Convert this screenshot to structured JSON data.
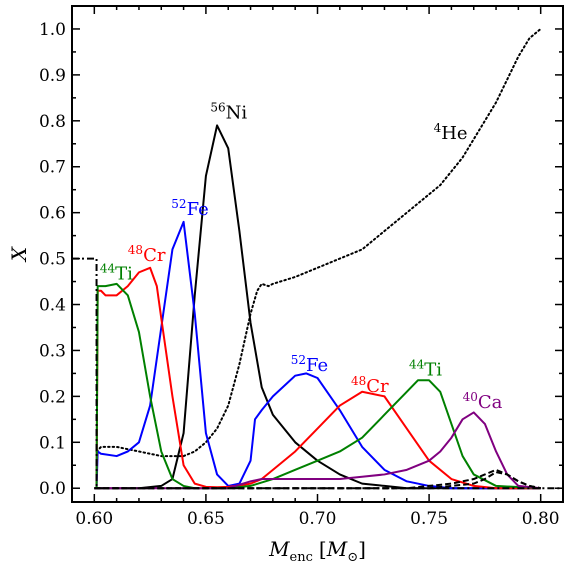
{
  "chart_data": {
    "type": "line",
    "title": "",
    "xlabel": {
      "main": "M",
      "sub": "enc",
      "unit_open": "[",
      "unit_main": "M",
      "unit_sub": "⊙",
      "unit_close": "]"
    },
    "ylabel": "X",
    "xlim": [
      0.59,
      0.81
    ],
    "ylim": [
      -0.03,
      1.05
    ],
    "xticks": [
      0.6,
      0.65,
      0.7,
      0.75,
      0.8
    ],
    "xtick_labels": [
      "0.60",
      "0.65",
      "0.70",
      "0.75",
      "0.80"
    ],
    "yticks": [
      0.0,
      0.1,
      0.2,
      0.3,
      0.4,
      0.5,
      0.6,
      0.7,
      0.8,
      0.9,
      1.0
    ],
    "ytick_labels": [
      "0.0",
      "0.1",
      "0.2",
      "0.3",
      "0.4",
      "0.5",
      "0.6",
      "0.7",
      "0.8",
      "0.9",
      "1.0"
    ],
    "grid": false,
    "legend": "none",
    "series": [
      {
        "key": "he4",
        "color": "#000000",
        "style": "dotted",
        "x": [
          0.601,
          0.603,
          0.61,
          0.62,
          0.63,
          0.64,
          0.645,
          0.65,
          0.655,
          0.66,
          0.665,
          0.67,
          0.673,
          0.675,
          0.678,
          0.68,
          0.69,
          0.7,
          0.71,
          0.72,
          0.73,
          0.74,
          0.75,
          0.755,
          0.76,
          0.765,
          0.77,
          0.775,
          0.78,
          0.785,
          0.79,
          0.795,
          0.8
        ],
        "y": [
          0.08,
          0.09,
          0.09,
          0.08,
          0.07,
          0.07,
          0.08,
          0.1,
          0.13,
          0.18,
          0.27,
          0.38,
          0.43,
          0.445,
          0.44,
          0.445,
          0.46,
          0.48,
          0.5,
          0.52,
          0.56,
          0.6,
          0.64,
          0.66,
          0.69,
          0.72,
          0.76,
          0.8,
          0.84,
          0.89,
          0.94,
          0.98,
          1.0
        ]
      },
      {
        "key": "ni56",
        "color": "#000000",
        "style": "solid",
        "x": [
          0.6,
          0.62,
          0.63,
          0.635,
          0.64,
          0.645,
          0.65,
          0.655,
          0.66,
          0.665,
          0.67,
          0.675,
          0.68,
          0.69,
          0.7,
          0.71,
          0.72,
          0.73,
          0.74,
          0.75,
          0.76,
          0.77,
          0.78,
          0.8
        ],
        "y": [
          0.0,
          0.0,
          0.005,
          0.02,
          0.12,
          0.42,
          0.68,
          0.79,
          0.74,
          0.56,
          0.36,
          0.22,
          0.16,
          0.1,
          0.06,
          0.03,
          0.01,
          0.005,
          0.0,
          0.0,
          0.0,
          0.0,
          0.0,
          0.0
        ]
      },
      {
        "key": "fe52_inner",
        "color": "#0000ff",
        "style": "solid",
        "x": [
          0.601,
          0.6015,
          0.603,
          0.61,
          0.615,
          0.62,
          0.625,
          0.63,
          0.635,
          0.64,
          0.645,
          0.65,
          0.655,
          0.66,
          0.665,
          0.67,
          0.672,
          0.675,
          0.68,
          0.69,
          0.695,
          0.7,
          0.71,
          0.72,
          0.73,
          0.74,
          0.75,
          0.76,
          0.77,
          0.8
        ],
        "y": [
          0.0,
          0.08,
          0.075,
          0.07,
          0.08,
          0.1,
          0.18,
          0.35,
          0.52,
          0.58,
          0.38,
          0.12,
          0.03,
          0.005,
          0.01,
          0.06,
          0.15,
          0.17,
          0.2,
          0.245,
          0.25,
          0.24,
          0.17,
          0.09,
          0.04,
          0.015,
          0.005,
          0.0,
          0.0,
          0.0
        ]
      },
      {
        "key": "cr48",
        "color": "#ff0000",
        "style": "solid",
        "x": [
          0.601,
          0.6015,
          0.603,
          0.605,
          0.61,
          0.615,
          0.62,
          0.625,
          0.628,
          0.63,
          0.635,
          0.64,
          0.645,
          0.65,
          0.655,
          0.66,
          0.665,
          0.67,
          0.675,
          0.68,
          0.69,
          0.7,
          0.71,
          0.72,
          0.73,
          0.74,
          0.75,
          0.76,
          0.77,
          0.78,
          0.8
        ],
        "y": [
          0.0,
          0.43,
          0.43,
          0.42,
          0.42,
          0.44,
          0.47,
          0.48,
          0.44,
          0.37,
          0.2,
          0.05,
          0.01,
          0.003,
          0.002,
          0.003,
          0.006,
          0.01,
          0.02,
          0.04,
          0.08,
          0.13,
          0.18,
          0.21,
          0.2,
          0.13,
          0.06,
          0.02,
          0.005,
          0.0,
          0.0
        ]
      },
      {
        "key": "ti44",
        "color": "#008000",
        "style": "solid",
        "x": [
          0.601,
          0.6015,
          0.605,
          0.61,
          0.615,
          0.62,
          0.625,
          0.63,
          0.635,
          0.64,
          0.645,
          0.65,
          0.66,
          0.67,
          0.68,
          0.69,
          0.7,
          0.71,
          0.72,
          0.73,
          0.74,
          0.745,
          0.75,
          0.755,
          0.76,
          0.765,
          0.77,
          0.78,
          0.8
        ],
        "y": [
          0.0,
          0.44,
          0.44,
          0.445,
          0.42,
          0.34,
          0.2,
          0.08,
          0.02,
          0.005,
          0.0,
          0.0,
          0.0,
          0.005,
          0.02,
          0.04,
          0.06,
          0.08,
          0.11,
          0.16,
          0.21,
          0.235,
          0.235,
          0.21,
          0.14,
          0.07,
          0.03,
          0.005,
          0.0
        ]
      },
      {
        "key": "ca40",
        "color": "#800080",
        "style": "solid",
        "x": [
          0.6,
          0.66,
          0.67,
          0.675,
          0.68,
          0.69,
          0.7,
          0.71,
          0.72,
          0.73,
          0.74,
          0.75,
          0.755,
          0.76,
          0.765,
          0.77,
          0.775,
          0.78,
          0.785,
          0.79,
          0.8
        ],
        "y": [
          0.0,
          0.0,
          0.015,
          0.02,
          0.02,
          0.02,
          0.02,
          0.02,
          0.025,
          0.03,
          0.04,
          0.06,
          0.08,
          0.11,
          0.15,
          0.165,
          0.14,
          0.08,
          0.03,
          0.005,
          0.0
        ]
      },
      {
        "key": "dashed_a",
        "color": "#000000",
        "style": "dashed",
        "x": [
          0.6,
          0.74,
          0.75,
          0.76,
          0.77,
          0.775,
          0.78,
          0.785,
          0.79,
          0.795,
          0.8
        ],
        "y": [
          0.0,
          0.0,
          0.005,
          0.01,
          0.02,
          0.03,
          0.04,
          0.03,
          0.015,
          0.005,
          0.0
        ]
      },
      {
        "key": "dashed_b",
        "color": "#000000",
        "style": "dashed",
        "x": [
          0.6,
          0.75,
          0.76,
          0.77,
          0.775,
          0.78,
          0.785,
          0.79,
          0.795,
          0.8
        ],
        "y": [
          0.0,
          0.0,
          0.005,
          0.01,
          0.02,
          0.035,
          0.03,
          0.015,
          0.005,
          0.0
        ]
      },
      {
        "key": "dashdot_edge",
        "color": "#000000",
        "style": "dashdot",
        "x": [
          0.59,
          0.601,
          0.601,
          0.81
        ],
        "y": [
          0.5,
          0.5,
          0.0,
          0.0
        ]
      }
    ],
    "annotations": [
      {
        "sup": "56",
        "text": "Ni",
        "x": 0.652,
        "y": 0.805,
        "color": "#000000"
      },
      {
        "sup": "4",
        "text": "He",
        "x": 0.752,
        "y": 0.76,
        "color": "#000000"
      },
      {
        "sup": "52",
        "text": "Fe",
        "x": 0.6345,
        "y": 0.595,
        "color": "#0000ff"
      },
      {
        "sup": "48",
        "text": "Cr",
        "x": 0.615,
        "y": 0.495,
        "color": "#ff0000"
      },
      {
        "sup": "44",
        "text": "Ti",
        "x": 0.6025,
        "y": 0.455,
        "color": "#008000"
      },
      {
        "sup": "52",
        "text": "Fe",
        "x": 0.688,
        "y": 0.255,
        "color": "#0000ff"
      },
      {
        "sup": "48",
        "text": "Cr",
        "x": 0.715,
        "y": 0.21,
        "color": "#ff0000"
      },
      {
        "sup": "44",
        "text": "Ti",
        "x": 0.741,
        "y": 0.245,
        "color": "#008000"
      },
      {
        "sup": "40",
        "text": "Ca",
        "x": 0.765,
        "y": 0.175,
        "color": "#800080"
      }
    ]
  }
}
